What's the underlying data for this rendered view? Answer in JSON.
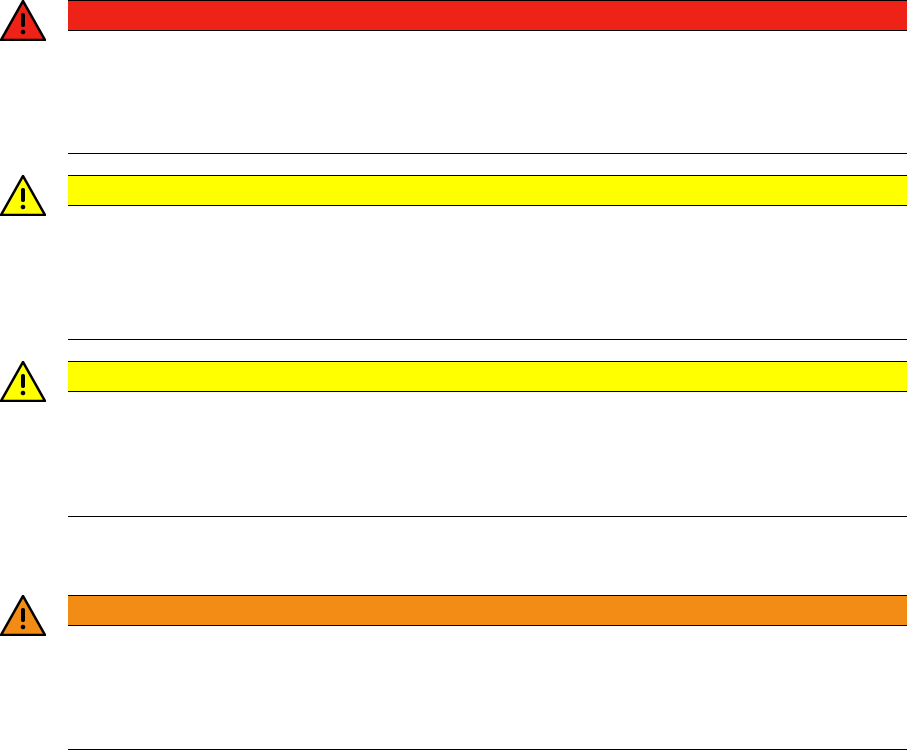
{
  "notices": [
    {
      "level": "danger",
      "color": "#ee2217",
      "icon": "warning-triangle-icon"
    },
    {
      "level": "caution",
      "color": "#ffff00",
      "icon": "warning-triangle-icon"
    },
    {
      "level": "caution",
      "color": "#ffff00",
      "icon": "warning-triangle-icon"
    },
    {
      "level": "warning",
      "color": "#f38c15",
      "icon": "warning-triangle-icon"
    }
  ]
}
